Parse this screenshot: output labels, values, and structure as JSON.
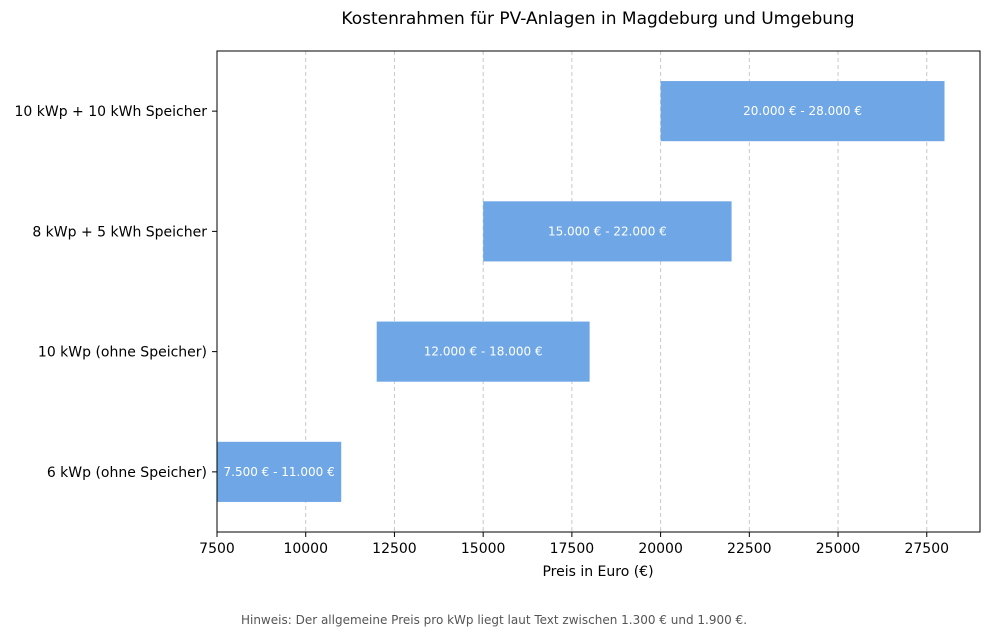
{
  "chart_data": {
    "type": "bar",
    "orientation": "horizontal-range",
    "title": "Kostenrahmen für PV-Anlagen in Magdeburg und Umgebung",
    "xlabel": "Preis in Euro (€)",
    "ylabel": "",
    "xlim": [
      7500,
      29000
    ],
    "xticks": [
      7500,
      10000,
      12500,
      15000,
      17500,
      20000,
      22500,
      25000,
      27500
    ],
    "grid": "x-dashed",
    "bar_color": "#6ea6e6",
    "categories": [
      "6 kWp (ohne Speicher)",
      "10 kWp (ohne Speicher)",
      "8 kWp + 5 kWh Speicher",
      "10 kWp + 10 kWh Speicher"
    ],
    "ranges": [
      {
        "min": 7500,
        "max": 11000,
        "label": "7.500 € - 11.000 €"
      },
      {
        "min": 12000,
        "max": 18000,
        "label": "12.000 € - 18.000 €"
      },
      {
        "min": 15000,
        "max": 22000,
        "label": "15.000 € - 22.000 €"
      },
      {
        "min": 20000,
        "max": 28000,
        "label": "20.000 € - 28.000 €"
      }
    ],
    "note": "Hinweis: Der allgemeine Preis pro kWp liegt laut Text zwischen 1.300 € und 1.900 €."
  }
}
